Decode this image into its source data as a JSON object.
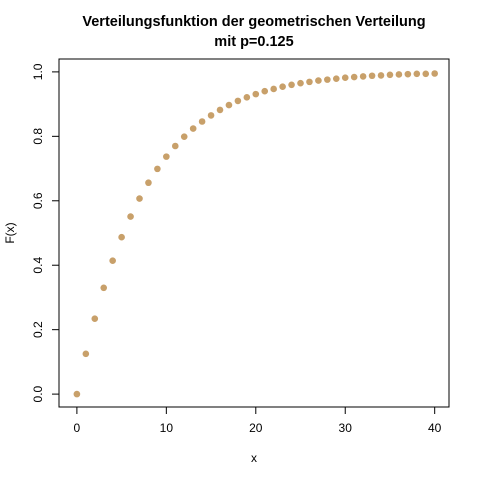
{
  "chart_data": {
    "type": "scatter",
    "title_line1": "Verteilungsfunktion der geometrischen Verteilung",
    "title_line2": "mit p=0.125",
    "xlabel": "x",
    "ylabel": "F(x)",
    "xlim": [
      -2,
      41.6
    ],
    "ylim": [
      -0.04,
      1.04
    ],
    "x_ticks": [
      0,
      10,
      20,
      30,
      40
    ],
    "x_tick_labels": [
      "0",
      "10",
      "20",
      "30",
      "40"
    ],
    "y_ticks": [
      0.0,
      0.2,
      0.4,
      0.6,
      0.8,
      1.0
    ],
    "y_tick_labels": [
      "0.0",
      "0.2",
      "0.4",
      "0.6",
      "0.8",
      "1.0"
    ],
    "point_color": "#C8A06A",
    "grid": false,
    "series": [
      {
        "x": [
          0,
          1,
          2,
          3,
          4,
          5,
          6,
          7,
          8,
          9,
          10,
          11,
          12,
          13,
          14,
          15,
          16,
          17,
          18,
          19,
          20,
          21,
          22,
          23,
          24,
          25,
          26,
          27,
          28,
          29,
          30,
          31,
          32,
          33,
          34,
          35,
          36,
          37,
          38,
          39,
          40
        ],
        "y": [
          0.0,
          0.125,
          0.234,
          0.33,
          0.414,
          0.487,
          0.551,
          0.607,
          0.656,
          0.699,
          0.737,
          0.77,
          0.799,
          0.824,
          0.846,
          0.865,
          0.882,
          0.897,
          0.91,
          0.921,
          0.931,
          0.94,
          0.947,
          0.954,
          0.96,
          0.965,
          0.969,
          0.973,
          0.976,
          0.979,
          0.982,
          0.984,
          0.986,
          0.988,
          0.989,
          0.991,
          0.992,
          0.993,
          0.994,
          0.994,
          0.995
        ]
      }
    ]
  }
}
